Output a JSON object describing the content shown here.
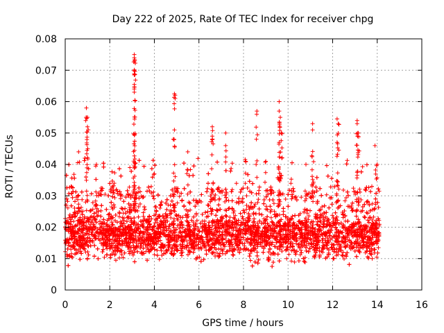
{
  "chart_data": {
    "type": "scatter",
    "title": "Day 222 of 2025, Rate Of TEC Index for receiver chpg",
    "xlabel": "GPS time / hours",
    "ylabel": "ROTI / TECUs",
    "xlim": [
      0,
      16
    ],
    "ylim": [
      0,
      0.08
    ],
    "xticks": [
      0,
      2,
      4,
      6,
      8,
      10,
      12,
      14,
      16
    ],
    "yticks": [
      0,
      0.01,
      0.02,
      0.03,
      0.04,
      0.05,
      0.06,
      0.07,
      0.08
    ],
    "xtick_labels": [
      "0",
      "2",
      "4",
      "6",
      "8",
      "10",
      "12",
      "14",
      "16"
    ],
    "ytick_labels": [
      "0",
      "0.01",
      "0.02",
      "0.03",
      "0.04",
      "0.05",
      "0.06",
      "0.07",
      "0.08"
    ],
    "grid": true,
    "marker": "+",
    "color": "#ff0000",
    "data_range_hours": [
      0,
      14.1
    ],
    "band": {
      "description": "dense cloud of ROTI values",
      "typical_min": 0.008,
      "typical_max": 0.025
    },
    "notable_points": [
      {
        "x": 0.95,
        "y": 0.058
      },
      {
        "x": 1.0,
        "y": 0.055
      },
      {
        "x": 1.0,
        "y": 0.052
      },
      {
        "x": 0.6,
        "y": 0.044
      },
      {
        "x": 1.4,
        "y": 0.04
      },
      {
        "x": 2.2,
        "y": 0.034
      },
      {
        "x": 2.9,
        "y": 0.039
      },
      {
        "x": 3.1,
        "y": 0.075
      },
      {
        "x": 3.1,
        "y": 0.074
      },
      {
        "x": 3.12,
        "y": 0.073
      },
      {
        "x": 3.1,
        "y": 0.0685
      },
      {
        "x": 3.1,
        "y": 0.063
      },
      {
        "x": 4.0,
        "y": 0.037
      },
      {
        "x": 4.9,
        "y": 0.0625
      },
      {
        "x": 4.9,
        "y": 0.051
      },
      {
        "x": 4.85,
        "y": 0.048
      },
      {
        "x": 5.5,
        "y": 0.044
      },
      {
        "x": 6.6,
        "y": 0.052
      },
      {
        "x": 6.6,
        "y": 0.049
      },
      {
        "x": 7.2,
        "y": 0.05
      },
      {
        "x": 7.2,
        "y": 0.046
      },
      {
        "x": 8.1,
        "y": 0.041
      },
      {
        "x": 8.6,
        "y": 0.057
      },
      {
        "x": 9.0,
        "y": 0.041
      },
      {
        "x": 9.6,
        "y": 0.06
      },
      {
        "x": 9.6,
        "y": 0.057
      },
      {
        "x": 9.65,
        "y": 0.055
      },
      {
        "x": 9.7,
        "y": 0.05
      },
      {
        "x": 9.6,
        "y": 0.047
      },
      {
        "x": 10.8,
        "y": 0.04
      },
      {
        "x": 11.1,
        "y": 0.053
      },
      {
        "x": 11.1,
        "y": 0.051
      },
      {
        "x": 12.2,
        "y": 0.0545
      },
      {
        "x": 12.25,
        "y": 0.053
      },
      {
        "x": 12.2,
        "y": 0.047
      },
      {
        "x": 13.1,
        "y": 0.054
      },
      {
        "x": 13.1,
        "y": 0.053
      },
      {
        "x": 13.15,
        "y": 0.05
      },
      {
        "x": 13.9,
        "y": 0.046
      },
      {
        "x": 14.0,
        "y": 0.04
      }
    ]
  }
}
